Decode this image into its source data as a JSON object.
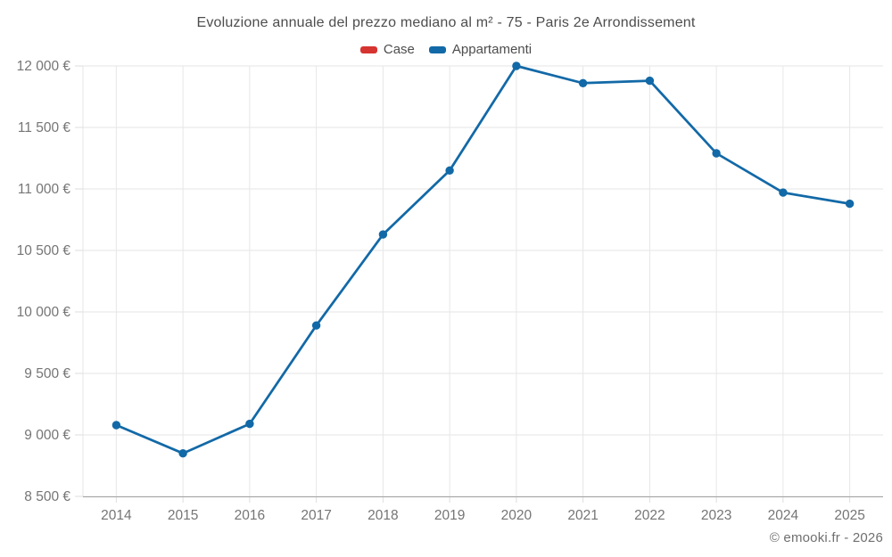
{
  "page": {
    "title": "Evoluzione annuale del prezzo mediano al m² - 75 - Paris 2e Arrondissement",
    "credit": "© emooki.fr - 2026"
  },
  "legend": {
    "items": [
      {
        "label": "Case",
        "color": "#d63430"
      },
      {
        "label": "Appartamenti",
        "color": "#1269a7"
      }
    ]
  },
  "colors": {
    "background": "#ffffff",
    "grid": "#e6e6e6",
    "axis_line": "#a3a3a3",
    "tick": "#dedede",
    "axis_label": "#757575",
    "title_text": "#4d4d4d",
    "legend_text": "#4d4d4d",
    "credit_text": "#6f6f6f",
    "series_case": "#d63430",
    "series_appartamenti": "#1269a7"
  },
  "chart_data": {
    "type": "line",
    "title": "Evoluzione annuale del prezzo mediano al m² - 75 - Paris 2e Arrondissement",
    "categories": [
      "2014",
      "2015",
      "2016",
      "2017",
      "2018",
      "2019",
      "2020",
      "2021",
      "2022",
      "2023",
      "2024",
      "2025"
    ],
    "series": [
      {
        "name": "Case",
        "color": "#d63430",
        "values": []
      },
      {
        "name": "Appartamenti",
        "color": "#1269a7",
        "values": [
          9080,
          8850,
          9090,
          9890,
          10630,
          11150,
          12000,
          11860,
          11880,
          11290,
          10970,
          10880
        ]
      }
    ],
    "xlabel": "",
    "ylabel": "",
    "ylim": [
      8500,
      12000
    ],
    "ytick_step": 500,
    "ytick_suffix": " €",
    "grid": true,
    "legend_position": "top",
    "legend_entries": [
      "Case",
      "Appartamenti"
    ],
    "annotations": [
      "© emooki.fr - 2026"
    ]
  }
}
